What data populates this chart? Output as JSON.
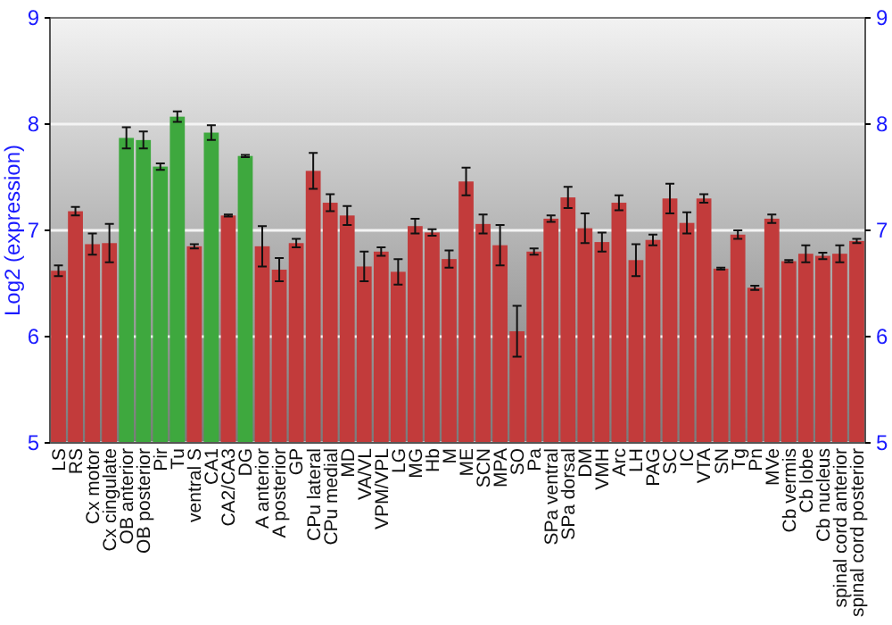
{
  "chart_data": {
    "type": "bar",
    "ylabel": "Log2 (expression)",
    "categories": [
      "LS",
      "RS",
      "Cx motor",
      "Cx cingulate",
      "OB anterior",
      "OB posterior",
      "Pir",
      "Tu",
      "ventral S",
      "CA1",
      "CA2/CA3",
      "DG",
      "A anterior",
      "A posterior",
      "GP",
      "CPu lateral",
      "CPu medial",
      "MD",
      "VA/VL",
      "VPM/VPL",
      "LG",
      "MG",
      "Hb",
      "M",
      "ME",
      "SCN",
      "MPA",
      "SO",
      "Pa",
      "SPa ventral",
      "SPa dorsal",
      "DM",
      "VMH",
      "Arc",
      "LH",
      "PAG",
      "SC",
      "IC",
      "VTA",
      "SN",
      "Tg",
      "Pn",
      "MVe",
      "Cb vermis",
      "Cb lobe",
      "Cb nucleus",
      "spinal cord anterior",
      "spinal cord posterior"
    ],
    "values": [
      6.62,
      7.18,
      6.87,
      6.88,
      7.87,
      7.85,
      7.6,
      8.07,
      6.85,
      7.92,
      7.14,
      7.7,
      6.85,
      6.63,
      6.88,
      7.56,
      7.26,
      7.14,
      6.66,
      6.8,
      6.61,
      7.04,
      6.98,
      6.73,
      7.46,
      7.06,
      6.86,
      6.05,
      6.8,
      7.11,
      7.31,
      7.02,
      6.89,
      7.26,
      6.72,
      6.91,
      7.3,
      7.07,
      7.3,
      6.64,
      6.96,
      6.46,
      7.11,
      6.71,
      6.78,
      6.76,
      6.78,
      6.9
    ],
    "errors": [
      0.05,
      0.04,
      0.1,
      0.18,
      0.1,
      0.08,
      0.03,
      0.05,
      0.02,
      0.07,
      0.01,
      0.01,
      0.19,
      0.11,
      0.04,
      0.17,
      0.08,
      0.09,
      0.14,
      0.04,
      0.12,
      0.07,
      0.03,
      0.08,
      0.13,
      0.09,
      0.19,
      0.24,
      0.03,
      0.03,
      0.1,
      0.14,
      0.09,
      0.07,
      0.15,
      0.05,
      0.14,
      0.1,
      0.04,
      0.01,
      0.04,
      0.02,
      0.04,
      0.01,
      0.08,
      0.03,
      0.08,
      0.02
    ],
    "colors": [
      "#c23b3b",
      "#c23b3b",
      "#c23b3b",
      "#c23b3b",
      "#3ea83e",
      "#3ea83e",
      "#3ea83e",
      "#3ea83e",
      "#c23b3b",
      "#3ea83e",
      "#c23b3b",
      "#3ea83e",
      "#c23b3b",
      "#c23b3b",
      "#c23b3b",
      "#c23b3b",
      "#c23b3b",
      "#c23b3b",
      "#c23b3b",
      "#c23b3b",
      "#c23b3b",
      "#c23b3b",
      "#c23b3b",
      "#c23b3b",
      "#c23b3b",
      "#c23b3b",
      "#c23b3b",
      "#c23b3b",
      "#c23b3b",
      "#c23b3b",
      "#c23b3b",
      "#c23b3b",
      "#c23b3b",
      "#c23b3b",
      "#c23b3b",
      "#c23b3b",
      "#c23b3b",
      "#c23b3b",
      "#c23b3b",
      "#c23b3b",
      "#c23b3b",
      "#c23b3b",
      "#c23b3b",
      "#c23b3b",
      "#c23b3b",
      "#c23b3b",
      "#c23b3b",
      "#c23b3b"
    ],
    "ylim": [
      5,
      9
    ],
    "yticks": [
      5,
      6,
      7,
      8,
      9
    ],
    "y2lim": [
      5,
      9
    ],
    "y2ticks": [
      5,
      6,
      7,
      8,
      9
    ],
    "grid": "y"
  }
}
